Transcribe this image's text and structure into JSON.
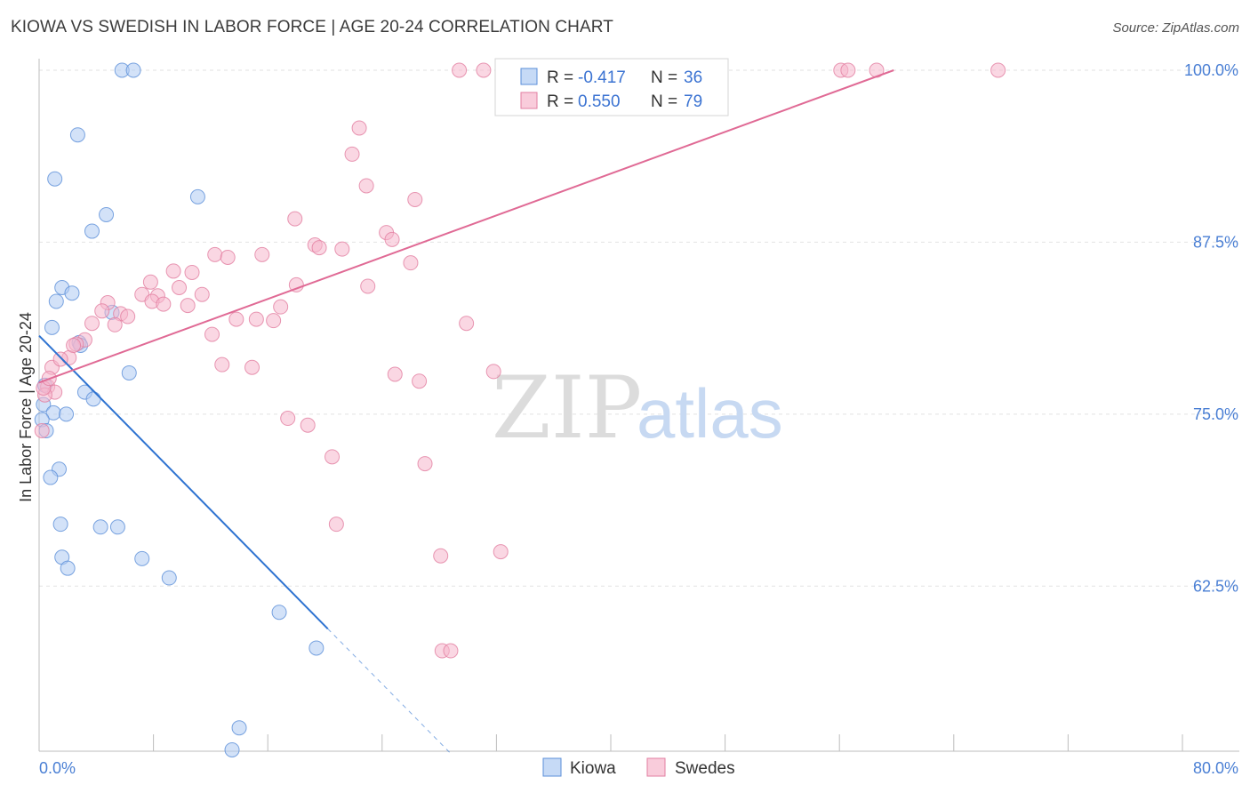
{
  "header": {
    "title": "KIOWA VS SWEDISH IN LABOR FORCE | AGE 20-24 CORRELATION CHART",
    "source": "Source: ZipAtlas.com"
  },
  "watermark": {
    "zip": "ZIP",
    "atlas": "atlas"
  },
  "chart_data": {
    "type": "scatter",
    "ylabel": "In Labor Force | Age 20-24",
    "xlim": [
      0,
      80
    ],
    "ylim": [
      50.5,
      100
    ],
    "x_tick_labels": [
      "0.0%",
      "80.0%"
    ],
    "y_ticks": [
      62.5,
      75.0,
      87.5,
      100.0
    ],
    "y_tick_labels": [
      "62.5%",
      "75.0%",
      "87.5%",
      "100.0%"
    ],
    "grid": true,
    "legend_top": [
      {
        "r_label": "R = ",
        "r_value": "-0.417",
        "n_label": "N = ",
        "n_value": "36",
        "color": "#aecbf2"
      },
      {
        "r_label": "R = ",
        "r_value": "0.550",
        "n_label": "N = ",
        "n_value": "79",
        "color": "#f6b7cc"
      }
    ],
    "series": [
      {
        "name": "Kiowa",
        "fill": "#aecbf2",
        "stroke": "#5b8fd8",
        "line_color": "#2e73d1",
        "trend": {
          "x0": 0.0,
          "y0": 80.7,
          "x1": 20.2,
          "y1": 59.4,
          "x_dash_end": 28.8
        },
        "points": [
          [
            5.8,
            100.0
          ],
          [
            6.6,
            100.0
          ],
          [
            2.7,
            95.3
          ],
          [
            1.1,
            92.1
          ],
          [
            11.1,
            90.8
          ],
          [
            4.7,
            89.5
          ],
          [
            3.7,
            88.3
          ],
          [
            1.6,
            84.2
          ],
          [
            2.3,
            83.8
          ],
          [
            1.2,
            83.2
          ],
          [
            5.1,
            82.4
          ],
          [
            0.9,
            81.3
          ],
          [
            2.8,
            80.2
          ],
          [
            2.9,
            80.0
          ],
          [
            6.3,
            78.0
          ],
          [
            0.4,
            77.1
          ],
          [
            3.2,
            76.6
          ],
          [
            3.8,
            76.1
          ],
          [
            0.3,
            75.7
          ],
          [
            1.0,
            75.1
          ],
          [
            1.9,
            75.0
          ],
          [
            0.2,
            74.6
          ],
          [
            0.5,
            73.8
          ],
          [
            1.4,
            71.0
          ],
          [
            0.8,
            70.4
          ],
          [
            1.5,
            67.0
          ],
          [
            4.3,
            66.8
          ],
          [
            5.5,
            66.8
          ],
          [
            1.6,
            64.6
          ],
          [
            2.0,
            63.8
          ],
          [
            7.2,
            64.5
          ],
          [
            9.1,
            63.1
          ],
          [
            16.8,
            60.6
          ],
          [
            19.4,
            58.0
          ],
          [
            14.0,
            52.2
          ],
          [
            13.5,
            50.6
          ]
        ]
      },
      {
        "name": "Swedes",
        "fill": "#f6b7cc",
        "stroke": "#e27ea0",
        "line_color": "#e06a95",
        "trend": {
          "x0": 0.0,
          "y0": 77.3,
          "x1": 59.8,
          "y1": 100.0
        },
        "points": [
          [
            29.4,
            100.0
          ],
          [
            31.1,
            100.0
          ],
          [
            32.6,
            100.0
          ],
          [
            34.2,
            100.0
          ],
          [
            36.6,
            100.0
          ],
          [
            38.4,
            100.0
          ],
          [
            40.5,
            100.0
          ],
          [
            43.3,
            100.0
          ],
          [
            45.0,
            100.0
          ],
          [
            47.7,
            100.0
          ],
          [
            56.1,
            100.0
          ],
          [
            56.6,
            100.0
          ],
          [
            58.6,
            100.0
          ],
          [
            67.1,
            100.0
          ],
          [
            37.1,
            98.1
          ],
          [
            22.4,
            95.8
          ],
          [
            21.9,
            93.9
          ],
          [
            22.9,
            91.6
          ],
          [
            26.3,
            90.6
          ],
          [
            17.9,
            89.2
          ],
          [
            24.3,
            88.2
          ],
          [
            24.7,
            87.7
          ],
          [
            19.3,
            87.3
          ],
          [
            19.6,
            87.1
          ],
          [
            21.2,
            87.0
          ],
          [
            12.3,
            86.6
          ],
          [
            13.2,
            86.4
          ],
          [
            15.6,
            86.6
          ],
          [
            26.0,
            86.0
          ],
          [
            9.4,
            85.4
          ],
          [
            10.7,
            85.3
          ],
          [
            7.8,
            84.6
          ],
          [
            9.8,
            84.2
          ],
          [
            18.0,
            84.4
          ],
          [
            23.0,
            84.3
          ],
          [
            7.2,
            83.7
          ],
          [
            8.3,
            83.6
          ],
          [
            11.4,
            83.7
          ],
          [
            4.8,
            83.1
          ],
          [
            7.9,
            83.2
          ],
          [
            8.7,
            83.0
          ],
          [
            10.4,
            82.9
          ],
          [
            16.9,
            82.8
          ],
          [
            4.4,
            82.5
          ],
          [
            5.7,
            82.3
          ],
          [
            6.2,
            82.1
          ],
          [
            13.8,
            81.9
          ],
          [
            15.2,
            81.9
          ],
          [
            16.4,
            81.8
          ],
          [
            3.7,
            81.6
          ],
          [
            5.3,
            81.5
          ],
          [
            29.9,
            81.6
          ],
          [
            12.1,
            80.8
          ],
          [
            3.2,
            80.4
          ],
          [
            2.6,
            80.1
          ],
          [
            2.1,
            79.1
          ],
          [
            12.8,
            78.6
          ],
          [
            14.9,
            78.4
          ],
          [
            0.9,
            78.4
          ],
          [
            31.8,
            78.1
          ],
          [
            24.9,
            77.9
          ],
          [
            26.6,
            77.4
          ],
          [
            0.6,
            77.0
          ],
          [
            1.1,
            76.6
          ],
          [
            0.4,
            76.4
          ],
          [
            17.4,
            74.7
          ],
          [
            18.8,
            74.2
          ],
          [
            0.2,
            73.8
          ],
          [
            20.5,
            71.9
          ],
          [
            27.0,
            71.4
          ],
          [
            20.8,
            67.0
          ],
          [
            28.1,
            64.7
          ],
          [
            32.3,
            65.0
          ],
          [
            28.2,
            57.8
          ],
          [
            28.8,
            57.8
          ],
          [
            0.3,
            76.9
          ],
          [
            1.5,
            79.0
          ],
          [
            2.4,
            80.0
          ],
          [
            0.7,
            77.6
          ]
        ]
      }
    ]
  }
}
